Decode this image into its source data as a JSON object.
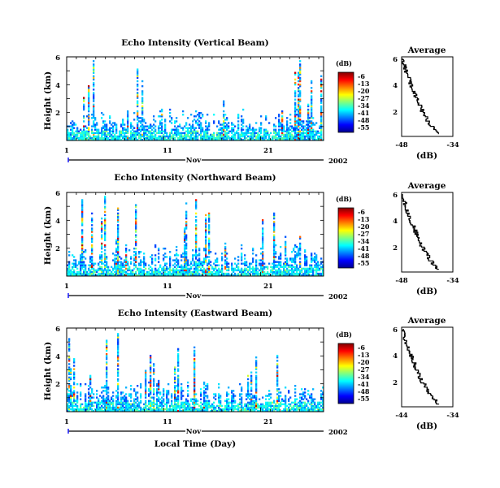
{
  "chart_data": [
    {
      "type": "heatmap",
      "title": "Echo Intensity (Vertical Beam)",
      "ylabel": "Height (km)",
      "y_ticks": [
        "6",
        "4",
        "2"
      ],
      "x_ticks": [
        "1",
        "11",
        "21"
      ],
      "x_month_label": "Nov",
      "x_year_label": "2002",
      "xlim": [
        1,
        27.5
      ],
      "ylim": [
        0,
        6
      ],
      "colorbar": {
        "unit_label": "(dB)",
        "ticks": [
          "-6",
          "-13",
          "-20",
          "-27",
          "-34",
          "-41",
          "-48",
          "-55"
        ],
        "range": [
          -55,
          -6
        ]
      },
      "profile": {
        "title": "Average",
        "xlabel": "(dB)",
        "x_ticks": [
          "-48",
          "-34"
        ],
        "y_ticks": [
          "6",
          "4",
          "2"
        ],
        "xlim": [
          -48,
          -34
        ],
        "ylim": [
          0,
          6
        ]
      }
    },
    {
      "type": "heatmap",
      "title": "Echo Intensity (Northward Beam)",
      "ylabel": "Height (km)",
      "y_ticks": [
        "6",
        "4",
        "2"
      ],
      "x_ticks": [
        "1",
        "11",
        "21"
      ],
      "x_month_label": "Nov",
      "x_year_label": "2002",
      "xlim": [
        1,
        27.5
      ],
      "ylim": [
        0,
        6
      ],
      "colorbar": {
        "unit_label": "(dB)",
        "ticks": [
          "-6",
          "-13",
          "-20",
          "-27",
          "-34",
          "-41",
          "-48",
          "-55"
        ],
        "range": [
          -55,
          -6
        ]
      },
      "profile": {
        "title": "Average",
        "xlabel": "(dB)",
        "x_ticks": [
          "-48",
          "-34"
        ],
        "y_ticks": [
          "6",
          "4",
          "2"
        ],
        "xlim": [
          -48,
          -34
        ],
        "ylim": [
          0,
          6
        ]
      }
    },
    {
      "type": "heatmap",
      "title": "Echo Intensity (Eastward Beam)",
      "ylabel": "Height (km)",
      "y_ticks": [
        "6",
        "4",
        "2"
      ],
      "x_ticks": [
        "1",
        "11",
        "21"
      ],
      "x_month_label": "Nov",
      "x_year_label": "2002",
      "xlabel": "Local Time (Day)",
      "xlim": [
        1,
        27.5
      ],
      "ylim": [
        0,
        6
      ],
      "colorbar": {
        "unit_label": "(dB)",
        "ticks": [
          "-6",
          "-13",
          "-20",
          "-27",
          "-34",
          "-41",
          "-48",
          "-55"
        ],
        "range": [
          -55,
          -6
        ]
      },
      "profile": {
        "title": "Average",
        "xlabel": "(dB)",
        "x_ticks": [
          "-44",
          "-34"
        ],
        "y_ticks": [
          "6",
          "4",
          "2"
        ],
        "xlim": [
          -44,
          -34
        ],
        "ylim": [
          0,
          6
        ]
      }
    }
  ],
  "colors": {
    "jet": [
      "#00008f",
      "#0000ff",
      "#0080ff",
      "#00ffff",
      "#80ff80",
      "#ffff00",
      "#ff8000",
      "#ff0000",
      "#800000"
    ]
  }
}
